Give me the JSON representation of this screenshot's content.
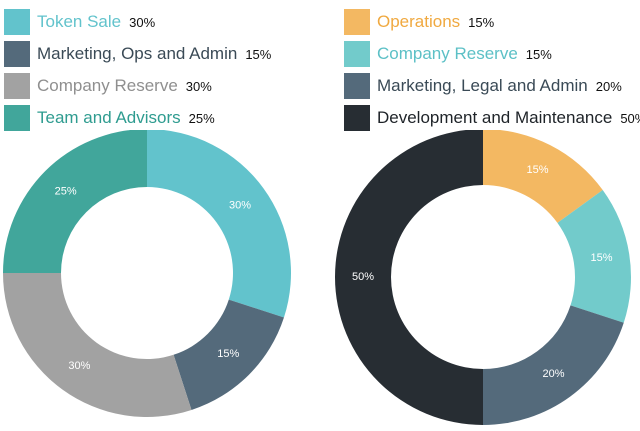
{
  "chart_data": [
    {
      "type": "pie",
      "style": "donut",
      "legend_position": "top",
      "slices": [
        {
          "label": "Token Sale",
          "value": 30,
          "pct_text": "30%",
          "color": "#62c3cc",
          "label_color": "#62c3cc"
        },
        {
          "label": "Marketing, Ops and Admin",
          "value": 15,
          "pct_text": "15%",
          "color": "#546a7b",
          "label_color": "#3a4a56"
        },
        {
          "label": "Company Reserve",
          "value": 30,
          "pct_text": "30%",
          "color": "#a2a2a2",
          "label_color": "#8f8f8f"
        },
        {
          "label": "Team and Advisors",
          "value": 25,
          "pct_text": "25%",
          "color": "#41a69b",
          "label_color": "#2f9c90"
        }
      ]
    },
    {
      "type": "pie",
      "style": "donut",
      "legend_position": "top",
      "slices": [
        {
          "label": "Operations",
          "value": 15,
          "pct_text": "15%",
          "color": "#f3b862",
          "label_color": "#f0a940"
        },
        {
          "label": "Company Reserve",
          "value": 15,
          "pct_text": "15%",
          "color": "#72cbcb",
          "label_color": "#5cc0c6"
        },
        {
          "label": "Marketing, Legal and Admin",
          "value": 20,
          "pct_text": "20%",
          "color": "#546a7b",
          "label_color": "#3a4a56"
        },
        {
          "label": "Development and Maintenance",
          "value": 50,
          "pct_text": "50%",
          "color": "#272d33",
          "label_color": "#1e2328"
        }
      ]
    }
  ]
}
